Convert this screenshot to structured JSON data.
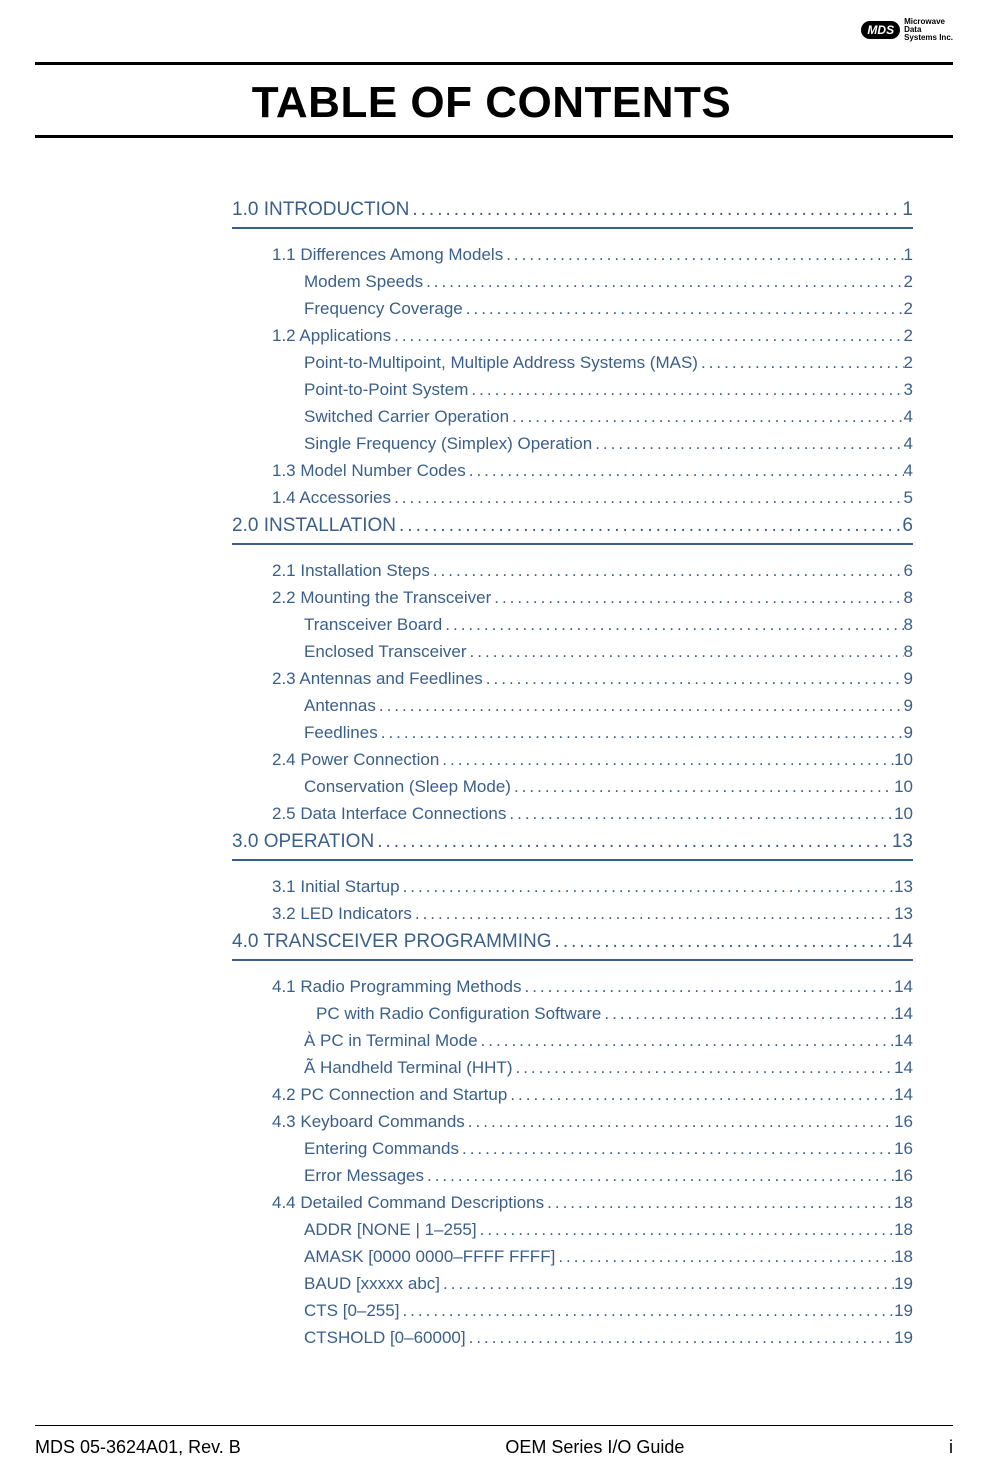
{
  "logo": {
    "badge": "MDS",
    "line1": "Microwave",
    "line2": "Data",
    "line3": "Systems Inc."
  },
  "title": "TABLE OF CONTENTS",
  "color_link": "#3a5f8a",
  "toc": [
    {
      "level": 1,
      "label": "1.0   INTRODUCTION",
      "page": "1"
    },
    {
      "level": "rule"
    },
    {
      "level": 2,
      "label": "1.1   Differences Among Models ",
      "page": "1"
    },
    {
      "level": 3,
      "label": "Modem Speeds",
      "page": "2"
    },
    {
      "level": 3,
      "label": "Frequency Coverage",
      "page": "2"
    },
    {
      "level": 2,
      "label": "1.2   Applications",
      "page": "2"
    },
    {
      "level": 3,
      "label": "Point-to-Multipoint, Multiple Address Systems (MAS)",
      "page": "2"
    },
    {
      "level": 3,
      "label": "Point-to-Point System",
      "page": "3"
    },
    {
      "level": 3,
      "label": "Switched Carrier Operation",
      "page": "4"
    },
    {
      "level": 3,
      "label": "Single Frequency (Simplex) Operation",
      "page": "4"
    },
    {
      "level": 2,
      "label": "1.3   Model Number Codes ",
      "page": "4"
    },
    {
      "level": 2,
      "label": "1.4   Accessories",
      "page": "5"
    },
    {
      "level": 1,
      "label": "2.0   INSTALLATION",
      "page": "6"
    },
    {
      "level": "rule"
    },
    {
      "level": 2,
      "label": "2.1   Installation Steps",
      "page": "6"
    },
    {
      "level": 2,
      "label": "2.2   Mounting the Transceiver ",
      "page": "8"
    },
    {
      "level": 3,
      "label": "Transceiver Board",
      "page": "8"
    },
    {
      "level": 3,
      "label": "Enclosed Transceiver",
      "page": "8"
    },
    {
      "level": 2,
      "label": "2.3   Antennas and Feedlines ",
      "page": "9"
    },
    {
      "level": 3,
      "label": "Antennas",
      "page": "9"
    },
    {
      "level": 3,
      "label": "Feedlines",
      "page": "9"
    },
    {
      "level": 2,
      "label": "2.4   Power Connection ",
      "page": "10"
    },
    {
      "level": 3,
      "label": "Conservation (Sleep Mode)",
      "page": "10"
    },
    {
      "level": 2,
      "label": "2.5   Data Interface Connections",
      "page": "10"
    },
    {
      "level": 1,
      "label": "3.0   OPERATION",
      "page": "13"
    },
    {
      "level": "rule"
    },
    {
      "level": 2,
      "label": "3.1   Initial Startup",
      "page": "13"
    },
    {
      "level": 2,
      "label": "3.2   LED Indicators",
      "page": "13"
    },
    {
      "level": 1,
      "label": "4.0   TRANSCEIVER PROGRAMMING",
      "page": "14"
    },
    {
      "level": "rule"
    },
    {
      "level": 2,
      "label": "4.1   Radio Programming Methods ",
      "page": "14"
    },
    {
      "level": "3b",
      "label": " PC with Radio Configuration Software",
      "page": "14"
    },
    {
      "level": 3,
      "label": "À  PC in Terminal Mode",
      "page": "14"
    },
    {
      "level": 3,
      "label": "Ã  Handheld Terminal (HHT)",
      "page": "14"
    },
    {
      "level": 2,
      "label": "4.2   PC Connection and Startup ",
      "page": "14"
    },
    {
      "level": 2,
      "label": "4.3   Keyboard Commands",
      "page": "16"
    },
    {
      "level": 3,
      "label": "Entering Commands",
      "page": "16"
    },
    {
      "level": 3,
      "label": "Error Messages",
      "page": "16"
    },
    {
      "level": 2,
      "label": "4.4   Detailed Command Descriptions ",
      "page": "18"
    },
    {
      "level": 3,
      "label": "ADDR [NONE | 1–255]",
      "page": "18"
    },
    {
      "level": 3,
      "label": "AMASK [0000 0000–FFFF FFFF]",
      "page": "18"
    },
    {
      "level": 3,
      "label": "BAUD [xxxxx abc]",
      "page": "19"
    },
    {
      "level": 3,
      "label": "CTS [0–255]",
      "page": "19"
    },
    {
      "level": 3,
      "label": "CTSHOLD [0–60000]",
      "page": "19"
    }
  ],
  "footer": {
    "left": "MDS 05-3624A01, Rev. B",
    "center": "OEM Series I/O Guide",
    "right": "i"
  }
}
